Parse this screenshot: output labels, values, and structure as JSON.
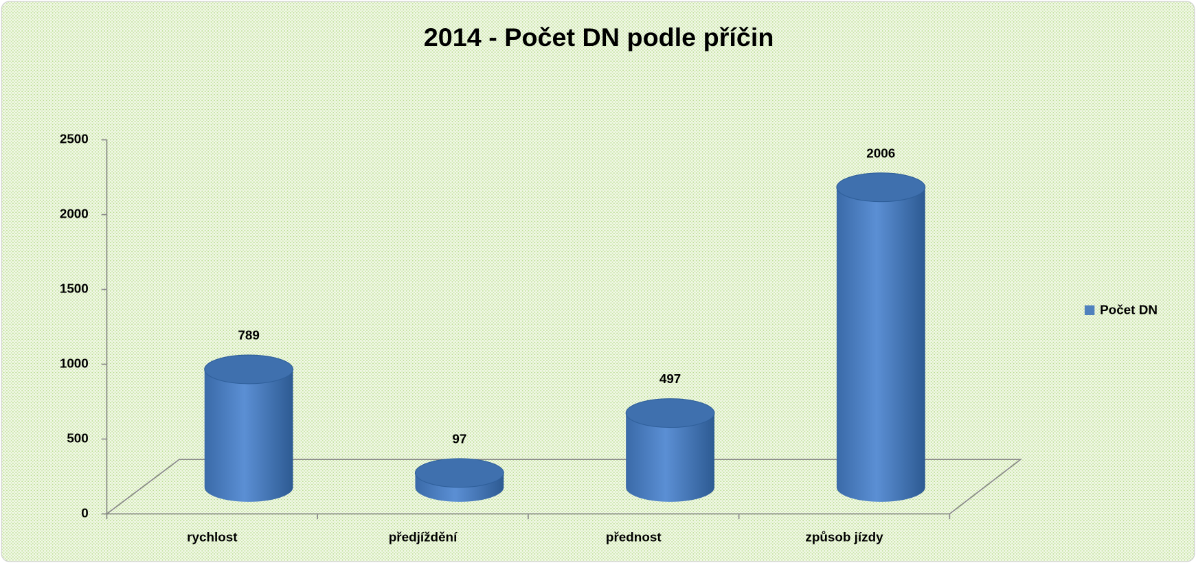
{
  "chart_data": {
    "type": "bar3d",
    "title": "2014 - Počet DN podle příčin",
    "categories": [
      "rychlost",
      "předjíždění",
      "přednost",
      "způsob jízdy"
    ],
    "series": [
      {
        "name": "Počet DN",
        "color": "#4f81bd",
        "values": [
          789,
          97,
          497,
          2006
        ]
      }
    ],
    "ylim": [
      0,
      2500
    ],
    "yticks": [
      0,
      500,
      1000,
      1500,
      2000,
      2500
    ],
    "legend": "right"
  }
}
